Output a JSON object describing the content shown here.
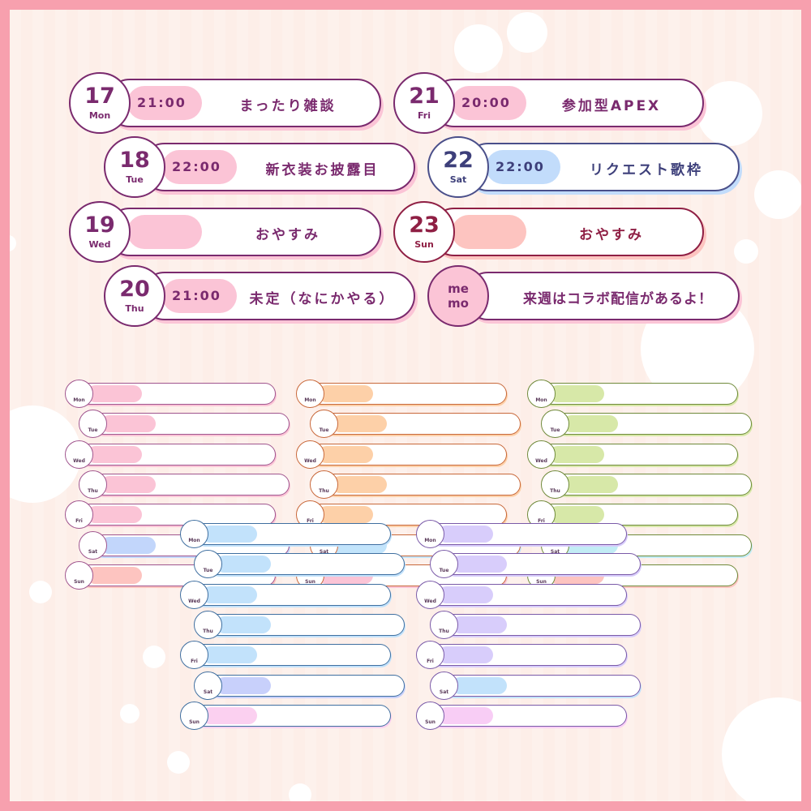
{
  "schedule": [
    {
      "date": "17",
      "day": "Mon",
      "time": "21:00",
      "title": "まったり雑談",
      "theme": "purple"
    },
    {
      "date": "18",
      "day": "Tue",
      "time": "22:00",
      "title": "新衣装お披露目",
      "theme": "purple"
    },
    {
      "date": "19",
      "day": "Wed",
      "time": "",
      "title": "おやすみ",
      "theme": "purple"
    },
    {
      "date": "20",
      "day": "Thu",
      "time": "21:00",
      "title": "未定（なにかやる）",
      "theme": "purple"
    },
    {
      "date": "21",
      "day": "Fri",
      "time": "20:00",
      "title": "参加型APEX",
      "theme": "purple"
    },
    {
      "date": "22",
      "day": "Sat",
      "time": "22:00",
      "title": "リクエスト歌枠",
      "theme": "blue"
    },
    {
      "date": "23",
      "day": "Sun",
      "time": "",
      "title": "おやすみ",
      "theme": "crimson"
    }
  ],
  "memo": {
    "label_top": "me",
    "label_bottom": "mo",
    "text": "来週はコラボ配信があるよ！"
  },
  "themes": {
    "purple": {
      "border": "#7a2a6e",
      "pill": "#fbc4d6",
      "text": "#7a2a6e"
    },
    "blue": {
      "border": "#4a4f8a",
      "pill": "#c2dcfb",
      "text": "#3d3f7a"
    },
    "crimson": {
      "border": "#8f1f44",
      "pill": "#fdc4c0",
      "text": "#8f1f44"
    }
  },
  "mini_days": [
    "Mon",
    "Tue",
    "Wed",
    "Thu",
    "Fri",
    "Sat",
    "Sun"
  ],
  "mini_sets": [
    {
      "border": "#a0558e",
      "pills": [
        "#fbc4d6",
        "#fbc4d6",
        "#fbc4d6",
        "#fbc4d6",
        "#fbc4d6",
        "#c2d6fb",
        "#fdc4c0"
      ]
    },
    {
      "border": "#c8683a",
      "pills": [
        "#fdd0a8",
        "#fdd0a8",
        "#fdd0a8",
        "#fdd0a8",
        "#fdd0a8",
        "#c2e4fb",
        "#fbc4d6"
      ]
    },
    {
      "border": "#6f8a3a",
      "pills": [
        "#d7e8a8",
        "#d7e8a8",
        "#d7e8a8",
        "#d7e8a8",
        "#d7e8a8",
        "#c2ecf5",
        "#fdc4c0"
      ]
    },
    {
      "border": "#3f6fa0",
      "pills": [
        "#c2e2fb",
        "#c2e2fb",
        "#c2e2fb",
        "#c2e2fb",
        "#c2e2fb",
        "#c8d0fb",
        "#fbd0f0"
      ]
    },
    {
      "border": "#7a5aa8",
      "pills": [
        "#d8cdfb",
        "#d8cdfb",
        "#d8cdfb",
        "#d8cdfb",
        "#d8cdfb",
        "#c2e2fb",
        "#f8cdf5"
      ]
    }
  ]
}
